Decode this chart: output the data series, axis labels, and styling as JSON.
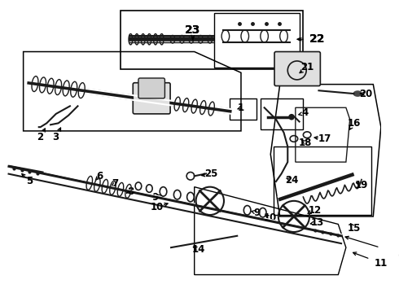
{
  "bg_color": "#ffffff",
  "line_color": "#000000",
  "dc": "#1a1a1a",
  "gray": "#888888",
  "lt_gray": "#cccccc",
  "figsize": [
    4.9,
    3.6
  ],
  "dpi": 100
}
